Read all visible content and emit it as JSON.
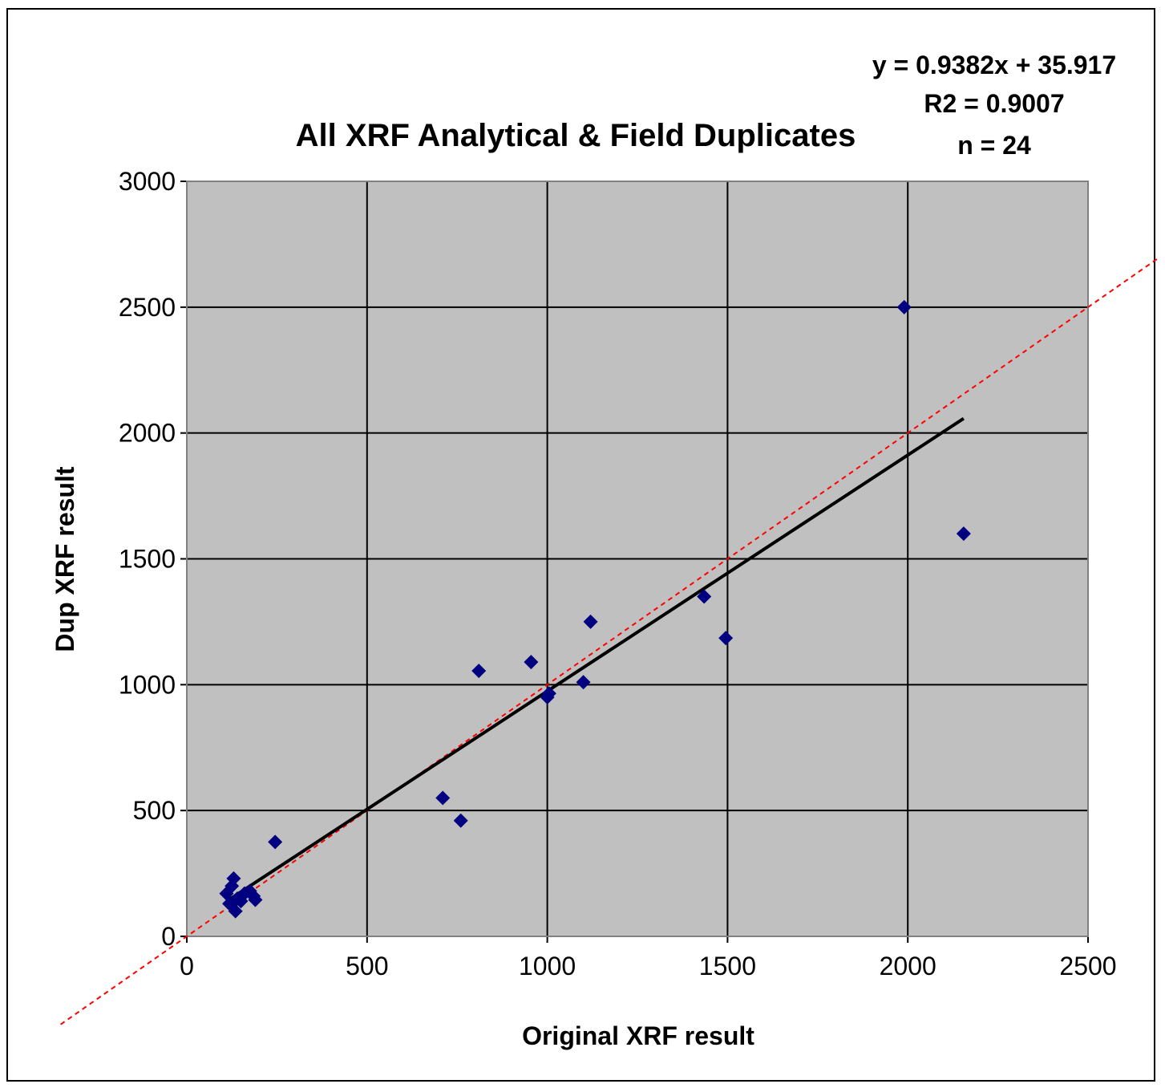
{
  "chart_data": {
    "type": "scatter",
    "title": "All XRF Analytical & Field Duplicates",
    "xlabel": "Original XRF result",
    "ylabel": "Dup XRF result",
    "xlim": [
      0,
      2500
    ],
    "ylim": [
      0,
      3000
    ],
    "x_ticks": [
      "0",
      "500",
      "1000",
      "1500",
      "2000",
      "2500"
    ],
    "y_ticks": [
      "0",
      "500",
      "1000",
      "1500",
      "2000",
      "2500",
      "3000"
    ],
    "grid": true,
    "plot_background": "#c0c0c0",
    "marker_color": "#000080",
    "trendline_color": "#000000",
    "reference_line_color": "#ff0000",
    "annotations": {
      "equation": "y = 0.9382x + 35.917",
      "r2": "R2 = 0.9007",
      "n": "n = 24"
    },
    "trendline": {
      "slope": 0.9382,
      "intercept": 35.917,
      "x_range": [
        120,
        2155
      ]
    },
    "reference_line": {
      "slope": 1,
      "intercept": 0
    },
    "series": [
      {
        "points": [
          [
            110,
            170
          ],
          [
            118,
            130
          ],
          [
            125,
            200
          ],
          [
            130,
            230
          ],
          [
            135,
            100
          ],
          [
            140,
            150
          ],
          [
            150,
            140
          ],
          [
            160,
            170
          ],
          [
            175,
            180
          ],
          [
            185,
            160
          ],
          [
            190,
            145
          ],
          [
            245,
            375
          ],
          [
            710,
            550
          ],
          [
            760,
            460
          ],
          [
            810,
            1055
          ],
          [
            955,
            1090
          ],
          [
            1000,
            950
          ],
          [
            1100,
            1010
          ],
          [
            1120,
            1250
          ],
          [
            1435,
            1350
          ],
          [
            1495,
            1185
          ],
          [
            1990,
            2500
          ],
          [
            2155,
            1600
          ],
          [
            1005,
            965
          ]
        ]
      }
    ]
  }
}
